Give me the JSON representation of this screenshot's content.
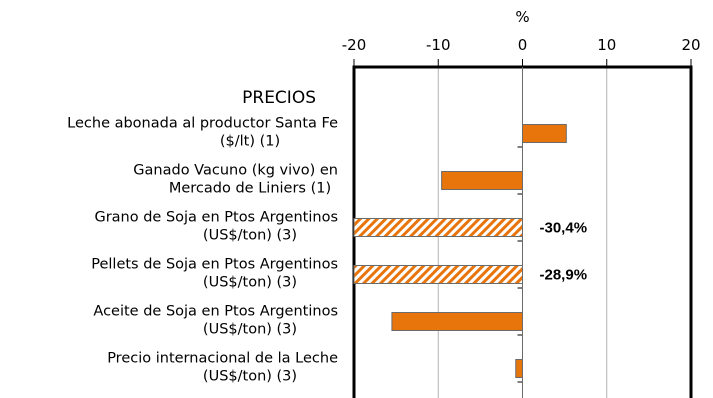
{
  "chart_data": {
    "type": "bar",
    "orientation": "horizontal",
    "axis_unit_label": "%",
    "section_label": "PRECIOS",
    "xlim": [
      -20,
      20
    ],
    "x_ticks": [
      -20,
      -10,
      0,
      10,
      20
    ],
    "x_tick_labels": [
      "-20",
      "-10",
      "0",
      "10",
      "20"
    ],
    "grid": true,
    "categories": [
      [
        "Leche abonada al productor Santa Fe",
        "($/lt) (1)"
      ],
      [
        "Ganado Vacuno (kg vivo) en",
        "Mercado de Liniers (1)"
      ],
      [
        "Grano de Soja en Ptos Argentinos",
        "(US$/ton) (3)"
      ],
      [
        "Pellets de Soja en Ptos Argentinos",
        "(US$/ton) (3)"
      ],
      [
        "Aceite de Soja en Ptos Argentinos",
        "(US$/ton) (3)"
      ],
      [
        "Precio internacional de la Leche",
        "(US$/ton) (3)"
      ]
    ],
    "values": [
      5.2,
      -9.6,
      -30.4,
      -28.9,
      -15.5,
      -0.8
    ],
    "truncated": [
      false,
      false,
      true,
      true,
      false,
      false
    ],
    "data_labels": [
      "",
      "",
      "-30,4%",
      "-28,9%",
      "",
      ""
    ],
    "colors": {
      "bar": "#E8740C",
      "bar_border": "#6b6b6b",
      "hatch": "#E8740C",
      "grid": "#b3b3b3",
      "frame": "#000000"
    }
  }
}
